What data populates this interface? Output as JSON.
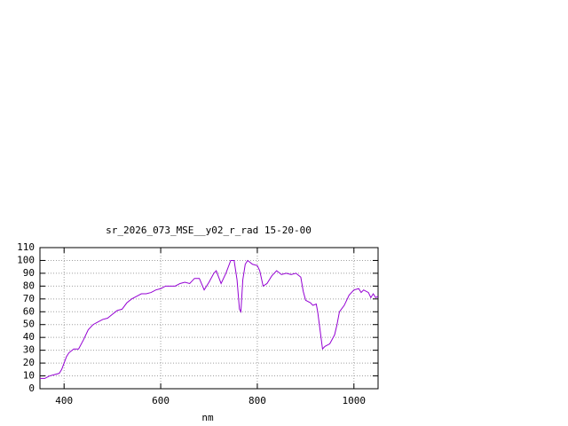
{
  "chart_data": {
    "type": "line",
    "title": "sr_2026_073_MSE__y02_r_rad 15-20-00",
    "xlabel": "nm",
    "x": [
      350,
      360,
      370,
      380,
      390,
      395,
      400,
      405,
      410,
      420,
      430,
      440,
      450,
      460,
      470,
      480,
      490,
      500,
      510,
      520,
      530,
      540,
      550,
      560,
      570,
      580,
      590,
      600,
      610,
      620,
      630,
      640,
      650,
      660,
      670,
      680,
      690,
      700,
      710,
      715,
      725,
      735,
      745,
      752,
      758,
      763,
      766,
      770,
      775,
      780,
      790,
      800,
      805,
      812,
      820,
      830,
      840,
      850,
      860,
      870,
      880,
      890,
      895,
      900,
      910,
      915,
      922,
      925,
      935,
      940,
      950,
      960,
      965,
      970,
      980,
      990,
      1000,
      1010,
      1015,
      1020,
      1030,
      1035,
      1040,
      1045,
      1050
    ],
    "series": [
      {
        "name": "sr_2026_073_MSE__y02_r_rad 15-20-00",
        "color": "#9400d3",
        "values": [
          8,
          8,
          10,
          11,
          12,
          15,
          20,
          25,
          28,
          31,
          31,
          38,
          46,
          50,
          52,
          54,
          55,
          58,
          61,
          62,
          67,
          70,
          72,
          74,
          74,
          75,
          77,
          78,
          80,
          80,
          80,
          82,
          83,
          82,
          86,
          86,
          77,
          83,
          90,
          92,
          82,
          90,
          100,
          100,
          85,
          62,
          60,
          85,
          97,
          100,
          97,
          96,
          92,
          80,
          82,
          88,
          92,
          89,
          90,
          89,
          90,
          87,
          76,
          69,
          67,
          65,
          66,
          60,
          31,
          33,
          35,
          42,
          50,
          60,
          65,
          73,
          77,
          78,
          75,
          77,
          75,
          71,
          74,
          71,
          72
        ]
      }
    ],
    "xlim": [
      350,
      1050
    ],
    "xticks": [
      400,
      600,
      800,
      1000
    ],
    "ylim": [
      0,
      110
    ],
    "yticks": [
      0,
      10,
      20,
      30,
      40,
      50,
      60,
      70,
      80,
      90,
      100,
      110
    ],
    "grid": true
  }
}
